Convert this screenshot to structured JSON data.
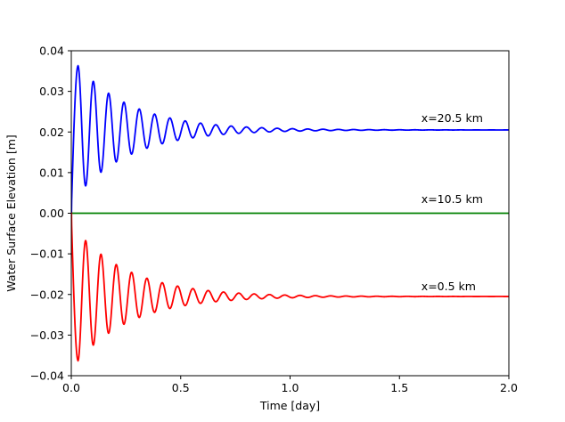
{
  "chart_data": {
    "type": "line",
    "title": "",
    "xlabel": "Time [day]",
    "ylabel": "Water Surface Elevation [m]",
    "xlim": [
      0.0,
      2.0
    ],
    "ylim": [
      -0.04,
      0.04
    ],
    "xticks": [
      0.0,
      0.5,
      1.0,
      1.5,
      2.0
    ],
    "xtick_labels": [
      "0.0",
      "0.5",
      "1.0",
      "1.5",
      "2.0"
    ],
    "yticks": [
      -0.04,
      -0.03,
      -0.02,
      -0.01,
      0.0,
      0.01,
      0.02,
      0.03,
      0.04
    ],
    "ytick_labels": [
      "−0.04",
      "−0.03",
      "−0.02",
      "−0.01",
      "0.00",
      "0.01",
      "0.02",
      "0.03",
      "0.04"
    ],
    "grid": false,
    "legend": "none",
    "series": [
      {
        "color": "#0000ff",
        "equilibrium": 0.0205,
        "first_peak_time": 0.031,
        "first_peak_value": 0.0363,
        "oscillation_period": 0.07,
        "decay_time": 0.25,
        "annotation": "x=20.5 km"
      },
      {
        "color": "#008000",
        "equilibrium": 0.0,
        "first_peak_time": 0.031,
        "first_peak_value": 0.0,
        "oscillation_period": 0.07,
        "decay_time": 0.25,
        "annotation": "x=10.5 km"
      },
      {
        "color": "#ff0000",
        "equilibrium": -0.0205,
        "first_peak_time": 0.031,
        "first_peak_value": -0.0363,
        "oscillation_period": 0.07,
        "decay_time": 0.25,
        "annotation": "x=0.5 km"
      }
    ],
    "annotations": [
      {
        "text": "x=20.5 km",
        "x": 1.6,
        "y": 0.0225
      },
      {
        "text": "x=10.5 km",
        "x": 1.6,
        "y": 0.0025
      },
      {
        "text": "x=0.5 km",
        "x": 1.6,
        "y": -0.019
      }
    ]
  }
}
